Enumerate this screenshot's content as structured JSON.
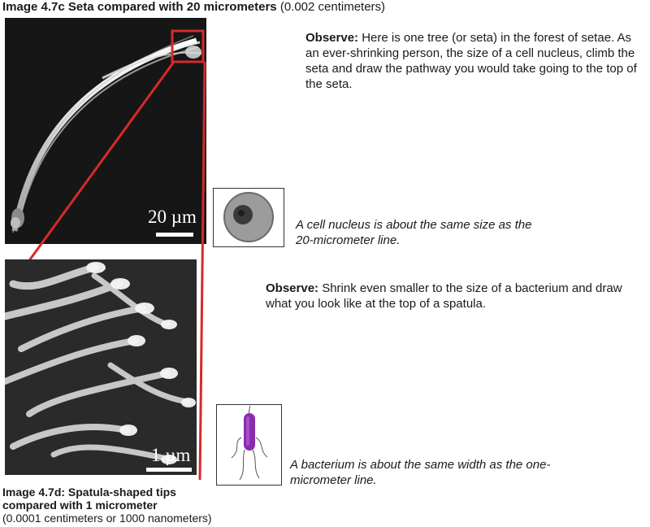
{
  "figure_c": {
    "caption_bold": "Image 4.7c Seta compared with 20 micrometers",
    "caption_rest": " (0.002 centimeters)",
    "scale_label": "20 µm",
    "inset_color": "#d62a2a"
  },
  "observe_1": {
    "label": "Observe:",
    "text": " Here is one tree (or seta) in the forest of setae. As an ever-shrinking person, the size of a cell nucleus, climb the seta and draw the pathway you would take going to the top of the seta."
  },
  "nucleus_note": "A cell nucleus is about the same size as the 20-micrometer line.",
  "observe_2": {
    "label": "Observe:",
    "text": " Shrink even smaller to the size of a bacterium and draw what you look like  at the top of a spatula."
  },
  "bacterium_note": "A bacterium is about the same width as the one-micrometer line.",
  "figure_d": {
    "caption_bold": "Image 4.7d: Spatula-shaped tips compared with 1 micrometer",
    "caption_rest": "(0.0001 centimeters or 1000 nanometers)",
    "scale_label": "1 µm"
  },
  "colors": {
    "bacterium": "#8a2bb0",
    "connector": "#d62a2a"
  }
}
